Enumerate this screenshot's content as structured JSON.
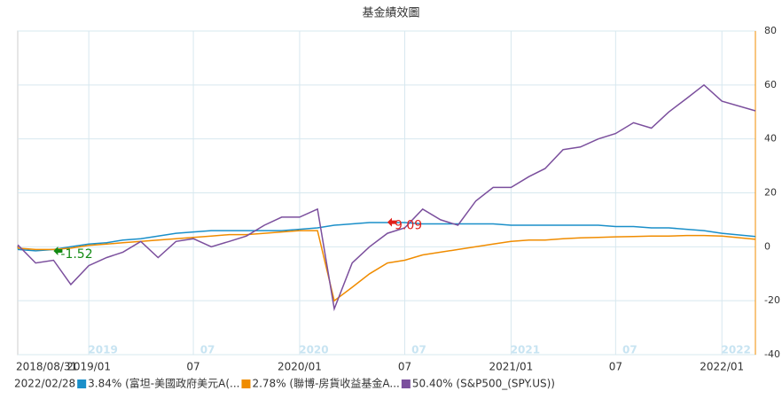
{
  "chart_data": {
    "type": "line",
    "title": "基金績效圖",
    "x": [
      "2018/08/31",
      "2018/09",
      "2018/10",
      "2018/11",
      "2018/12",
      "2019/01",
      "2019/02",
      "2019/03",
      "2019/04",
      "2019/05",
      "2019/06",
      "2019/07",
      "2019/08",
      "2019/09",
      "2019/10",
      "2019/11",
      "2019/12",
      "2020/01",
      "2020/02",
      "2020/03",
      "2020/04",
      "2020/05",
      "2020/06",
      "2020/07",
      "2020/08",
      "2020/09",
      "2020/10",
      "2020/11",
      "2020/12",
      "2021/01",
      "2021/02",
      "2021/03",
      "2021/04",
      "2021/05",
      "2021/06",
      "2021/07",
      "2021/08",
      "2021/09",
      "2021/10",
      "2021/11",
      "2021/12",
      "2022/01",
      "2022/02/28"
    ],
    "series": [
      {
        "name": "3.84% (富坦-美國政府美元A(...",
        "color": "#1a8fc9",
        "values": [
          0,
          -1,
          -1.5,
          -1,
          0,
          1,
          1.5,
          2.5,
          3,
          4,
          5,
          5.5,
          6,
          6,
          6,
          6,
          6,
          6.5,
          7,
          8,
          8.5,
          9,
          9,
          9,
          8.5,
          8.5,
          8.5,
          8.5,
          8.5,
          8,
          8,
          8,
          8,
          8,
          8,
          7.5,
          7.5,
          7,
          7,
          6.5,
          6,
          5,
          3.84
        ]
      },
      {
        "name": "2.78% (聯博-房貨收益基金A...",
        "color": "#f08c00",
        "values": [
          0,
          -0.5,
          -1,
          -1,
          -0.5,
          0.5,
          1,
          1.5,
          2,
          2.5,
          3,
          3.5,
          4,
          4.5,
          4.5,
          5,
          5.5,
          6,
          6,
          -20,
          -15,
          -10,
          -6,
          -5,
          -3,
          -2,
          -1,
          0,
          1,
          2,
          2.5,
          2.5,
          3,
          3.3,
          3.5,
          3.7,
          3.8,
          4,
          4,
          4.2,
          4.2,
          4,
          2.78
        ]
      },
      {
        "name": "50.40% (S&P500_(SPY.US))",
        "color": "#7b4f9d",
        "values": [
          0,
          0.5,
          -6,
          -5,
          -14,
          -7,
          -4,
          -2,
          2,
          -4,
          2,
          3,
          0,
          2,
          4,
          8,
          11,
          11,
          14,
          -23,
          -6,
          0,
          5,
          7,
          14,
          10,
          8,
          17,
          22,
          22,
          26,
          29,
          36,
          37,
          40,
          42,
          46,
          44,
          50,
          55,
          60,
          54,
          50.4
        ]
      }
    ],
    "legend_date": "2022/02/28",
    "xlim": [
      "2018/08/31",
      "2022/02/28"
    ],
    "xticks": [
      "2018/08/31",
      "2019/01",
      {
        "value": "2019/07",
        "label": "07"
      },
      "2020/01",
      {
        "value": "2020/07",
        "label": "07"
      },
      "2021/01",
      {
        "value": "2021/07",
        "label": "07"
      },
      "2022/01"
    ],
    "navigator_ticks": [
      {
        "value": "2019/01",
        "label": "2019"
      },
      {
        "value": "2019/07",
        "label": "07"
      },
      {
        "value": "2020/01",
        "label": "2020"
      },
      {
        "value": "2020/07",
        "label": "07"
      },
      {
        "value": "2021/01",
        "label": "2021"
      },
      {
        "value": "2021/07",
        "label": "07"
      },
      {
        "value": "2022/01",
        "label": "2022"
      }
    ],
    "ylim": [
      -40,
      80
    ],
    "yticks": [
      -40,
      -20,
      0,
      20,
      40,
      60,
      80
    ],
    "grid": true,
    "annotations": [
      {
        "text": "-1.52",
        "x": "2018/11",
        "y": -1.52,
        "color": "#138a13"
      },
      {
        "text": "9.09",
        "x": "2020/06",
        "y": 9.09,
        "color": "#e0201b"
      }
    ]
  }
}
